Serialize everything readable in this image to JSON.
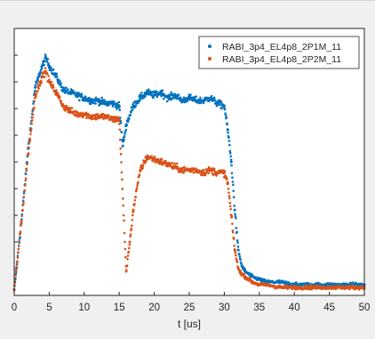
{
  "window": {
    "background": "#f0f0f0",
    "plot_background": "#ffffff"
  },
  "chart_data": {
    "type": "scatter",
    "title": "",
    "xlabel": "t [us]",
    "ylabel": "",
    "xlim": [
      0,
      50
    ],
    "ylim": [
      0,
      1
    ],
    "xticks": [
      0,
      5,
      10,
      15,
      20,
      25,
      30,
      35,
      40,
      45,
      50
    ],
    "xtick_labels": [
      "0",
      "5",
      "10",
      "15",
      "20",
      "25",
      "30",
      "35",
      "40",
      "45",
      "50"
    ],
    "y_tick_labels_visible": false,
    "y_tick_count": 11,
    "grid": false,
    "legend_position": "top-right",
    "series": [
      {
        "name": "RABI_3p4_EL4p8_2P1M_11",
        "color": "#0072bd",
        "marker": "dot",
        "x": [
          0,
          1,
          2,
          3,
          4,
          4.5,
          5,
          6,
          7,
          8,
          9,
          10,
          11,
          12,
          13,
          14,
          15,
          15.5,
          16,
          17,
          18,
          19,
          20,
          21,
          22,
          23,
          24,
          25,
          26,
          27,
          28,
          29,
          30,
          30.5,
          31,
          31.5,
          32,
          32.5,
          33,
          34,
          35,
          36,
          38,
          40,
          42,
          44,
          46,
          48,
          50
        ],
        "y": [
          0.02,
          0.27,
          0.55,
          0.78,
          0.86,
          0.89,
          0.86,
          0.82,
          0.77,
          0.76,
          0.75,
          0.74,
          0.73,
          0.73,
          0.72,
          0.72,
          0.71,
          0.56,
          0.64,
          0.71,
          0.74,
          0.76,
          0.75,
          0.76,
          0.74,
          0.75,
          0.73,
          0.74,
          0.73,
          0.73,
          0.74,
          0.72,
          0.71,
          0.62,
          0.5,
          0.32,
          0.17,
          0.11,
          0.09,
          0.07,
          0.06,
          0.05,
          0.05,
          0.04,
          0.04,
          0.04,
          0.04,
          0.04,
          0.04
        ]
      },
      {
        "name": "RABI_3p4_EL4p8_2P2M_11",
        "color": "#d95319",
        "marker": "dot",
        "x": [
          0,
          1,
          2,
          3,
          4,
          4.5,
          5,
          6,
          7,
          8,
          9,
          10,
          11,
          12,
          13,
          14,
          15,
          16,
          16.5,
          17,
          18,
          19,
          20,
          21,
          22,
          23,
          24,
          25,
          26,
          27,
          28,
          29,
          30,
          30.5,
          31,
          31.5,
          32,
          32.5,
          33,
          34,
          35,
          36,
          38,
          40,
          42,
          44,
          46,
          48,
          50
        ],
        "y": [
          0.02,
          0.27,
          0.53,
          0.75,
          0.82,
          0.84,
          0.8,
          0.76,
          0.71,
          0.69,
          0.68,
          0.68,
          0.67,
          0.67,
          0.67,
          0.66,
          0.66,
          0.09,
          0.2,
          0.32,
          0.47,
          0.52,
          0.51,
          0.5,
          0.49,
          0.48,
          0.47,
          0.47,
          0.47,
          0.46,
          0.47,
          0.46,
          0.46,
          0.42,
          0.3,
          0.17,
          0.1,
          0.08,
          0.07,
          0.05,
          0.04,
          0.04,
          0.03,
          0.03,
          0.03,
          0.03,
          0.03,
          0.03,
          0.03
        ]
      }
    ]
  }
}
